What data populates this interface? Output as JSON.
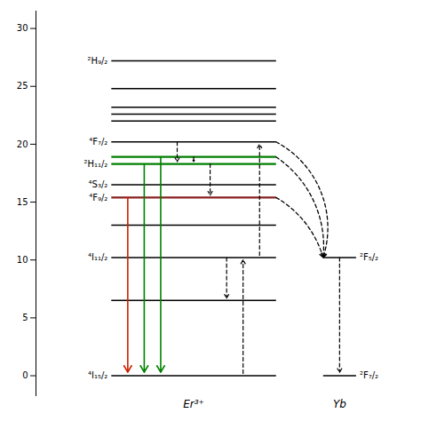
{
  "chart_data": {
    "type": "energy_levels",
    "categories": [
      "Er³⁺",
      "Yb"
    ],
    "levels": [
      {
        "category": "Er³⁺",
        "y": 0,
        "label": "⁴I₁₅/₂",
        "color": "black"
      },
      {
        "category": "Er³⁺",
        "y": 6.5,
        "label": null,
        "color": "black"
      },
      {
        "category": "Er³⁺",
        "y": 10.2,
        "label": "⁴I₁₁/₂",
        "color": "black"
      },
      {
        "category": "Er³⁺",
        "y": 13.0,
        "label": null,
        "color": "black"
      },
      {
        "category": "Er³⁺",
        "y": 15.4,
        "label": "⁴F₉/₂",
        "color": "#8b2020"
      },
      {
        "category": "Er³⁺",
        "y": 16.5,
        "label": "⁴S₃/₂",
        "color": "black"
      },
      {
        "category": "Er³⁺",
        "y": 18.3,
        "label": "²H₁₁/₂",
        "color": "green"
      },
      {
        "category": "Er³⁺",
        "y": 18.9,
        "label": null,
        "color": "green"
      },
      {
        "category": "Er³⁺",
        "y": 20.2,
        "label": "⁴F₇/₂",
        "color": "black"
      },
      {
        "category": "Er³⁺",
        "y": 22.0,
        "label": null,
        "color": "black"
      },
      {
        "category": "Er³⁺",
        "y": 22.6,
        "label": null,
        "color": "black"
      },
      {
        "category": "Er³⁺",
        "y": 23.2,
        "label": null,
        "color": "black"
      },
      {
        "category": "Er³⁺",
        "y": 24.8,
        "label": null,
        "color": "black"
      },
      {
        "category": "Er³⁺",
        "y": 27.2,
        "label": "²H₉/₂",
        "color": "black"
      },
      {
        "category": "Yb",
        "y": 0,
        "label": "²F₇/₂",
        "color": "black"
      },
      {
        "category": "Yb",
        "y": 10.2,
        "label": "²F₅/₂",
        "color": "black"
      }
    ],
    "transitions": [
      {
        "source": "Er³⁺",
        "target": "Er³⁺",
        "from": 15.4,
        "to": 0.3,
        "color": "#cc2200",
        "line_style": "solid"
      },
      {
        "source": "Er³⁺",
        "target": "Er³⁺",
        "from": 18.3,
        "to": 0.3,
        "color": "green",
        "line_style": "solid"
      },
      {
        "source": "Er³⁺",
        "target": "Er³⁺",
        "from": 18.9,
        "to": 0.3,
        "color": "green",
        "line_style": "solid"
      },
      {
        "source": "Er³⁺",
        "target": "Er³⁺",
        "from": 20.2,
        "to": 18.5,
        "color": "black",
        "line_style": "dashed"
      },
      {
        "source": "Er³⁺",
        "target": "Er³⁺",
        "from": 18.9,
        "to": 18.5,
        "color": "black",
        "line_style": "dashed"
      },
      {
        "source": "Er³⁺",
        "target": "Er³⁺",
        "from": 18.3,
        "to": 15.6,
        "color": "black",
        "line_style": "dashed"
      },
      {
        "source": "Er³⁺",
        "target": "Er³⁺",
        "from": 10.2,
        "to": 6.7,
        "color": "black",
        "line_style": "dashed"
      },
      {
        "source": "Er³⁺",
        "target": "Er³⁺",
        "from": 0.2,
        "to": 10.0,
        "color": "black",
        "line_style": "dashed"
      },
      {
        "source": "Er³⁺",
        "target": "Er³⁺",
        "from": 10.4,
        "to": 20.0,
        "color": "black",
        "line_style": "dashed"
      },
      {
        "source": "Er³⁺",
        "target": "Yb",
        "from": 20.2,
        "to": 10.2,
        "color": "black",
        "line_style": "dashed"
      },
      {
        "source": "Er³⁺",
        "target": "Yb",
        "from": 18.9,
        "to": 10.2,
        "color": "black",
        "line_style": "dashed"
      },
      {
        "source": "Er³⁺",
        "target": "Yb",
        "from": 15.4,
        "to": 10.2,
        "color": "black",
        "line_style": "dashed"
      },
      {
        "source": "Yb",
        "target": "Yb",
        "from": 10.2,
        "to": 0.3,
        "color": "black",
        "line_style": "dashed"
      }
    ],
    "ylim": [
      -1.8,
      31.5
    ],
    "yticks": [
      0,
      5,
      10,
      15,
      20,
      25,
      30
    ],
    "grid": false
  }
}
